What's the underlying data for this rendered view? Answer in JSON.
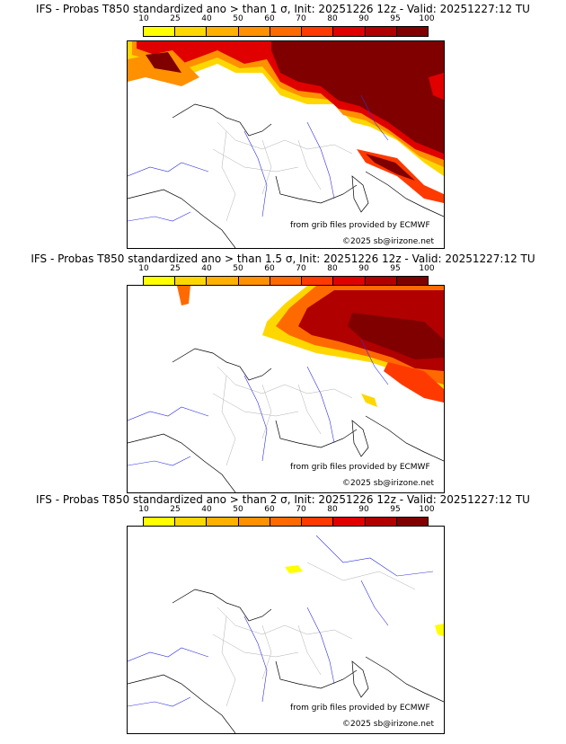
{
  "panels": [
    {
      "title": "IFS - Probas T850  standardized ano > than 1 σ, Init: 20251226 12z - Valid: 20251227:12 TU"
    },
    {
      "title": "IFS - Probas T850  standardized ano > than 1.5 σ, Init: 20251226 12z - Valid: 20251227:12 TU"
    },
    {
      "title": "IFS - Probas T850  standardized ano > than 2 σ, Init: 20251226 12z - Valid: 20251227:12 TU"
    }
  ],
  "legend": {
    "levels": [
      "10",
      "25",
      "40",
      "50",
      "60",
      "70",
      "80",
      "90",
      "95",
      "100"
    ],
    "colors": [
      "#ffff00",
      "#ffd700",
      "#ffb000",
      "#ff9000",
      "#ff6a00",
      "#ff3a00",
      "#e00000",
      "#b00000",
      "#800000"
    ]
  },
  "credits": {
    "source": "from grib files provided by ECMWF",
    "copyright": "©2025 sb@irizone.net"
  }
}
